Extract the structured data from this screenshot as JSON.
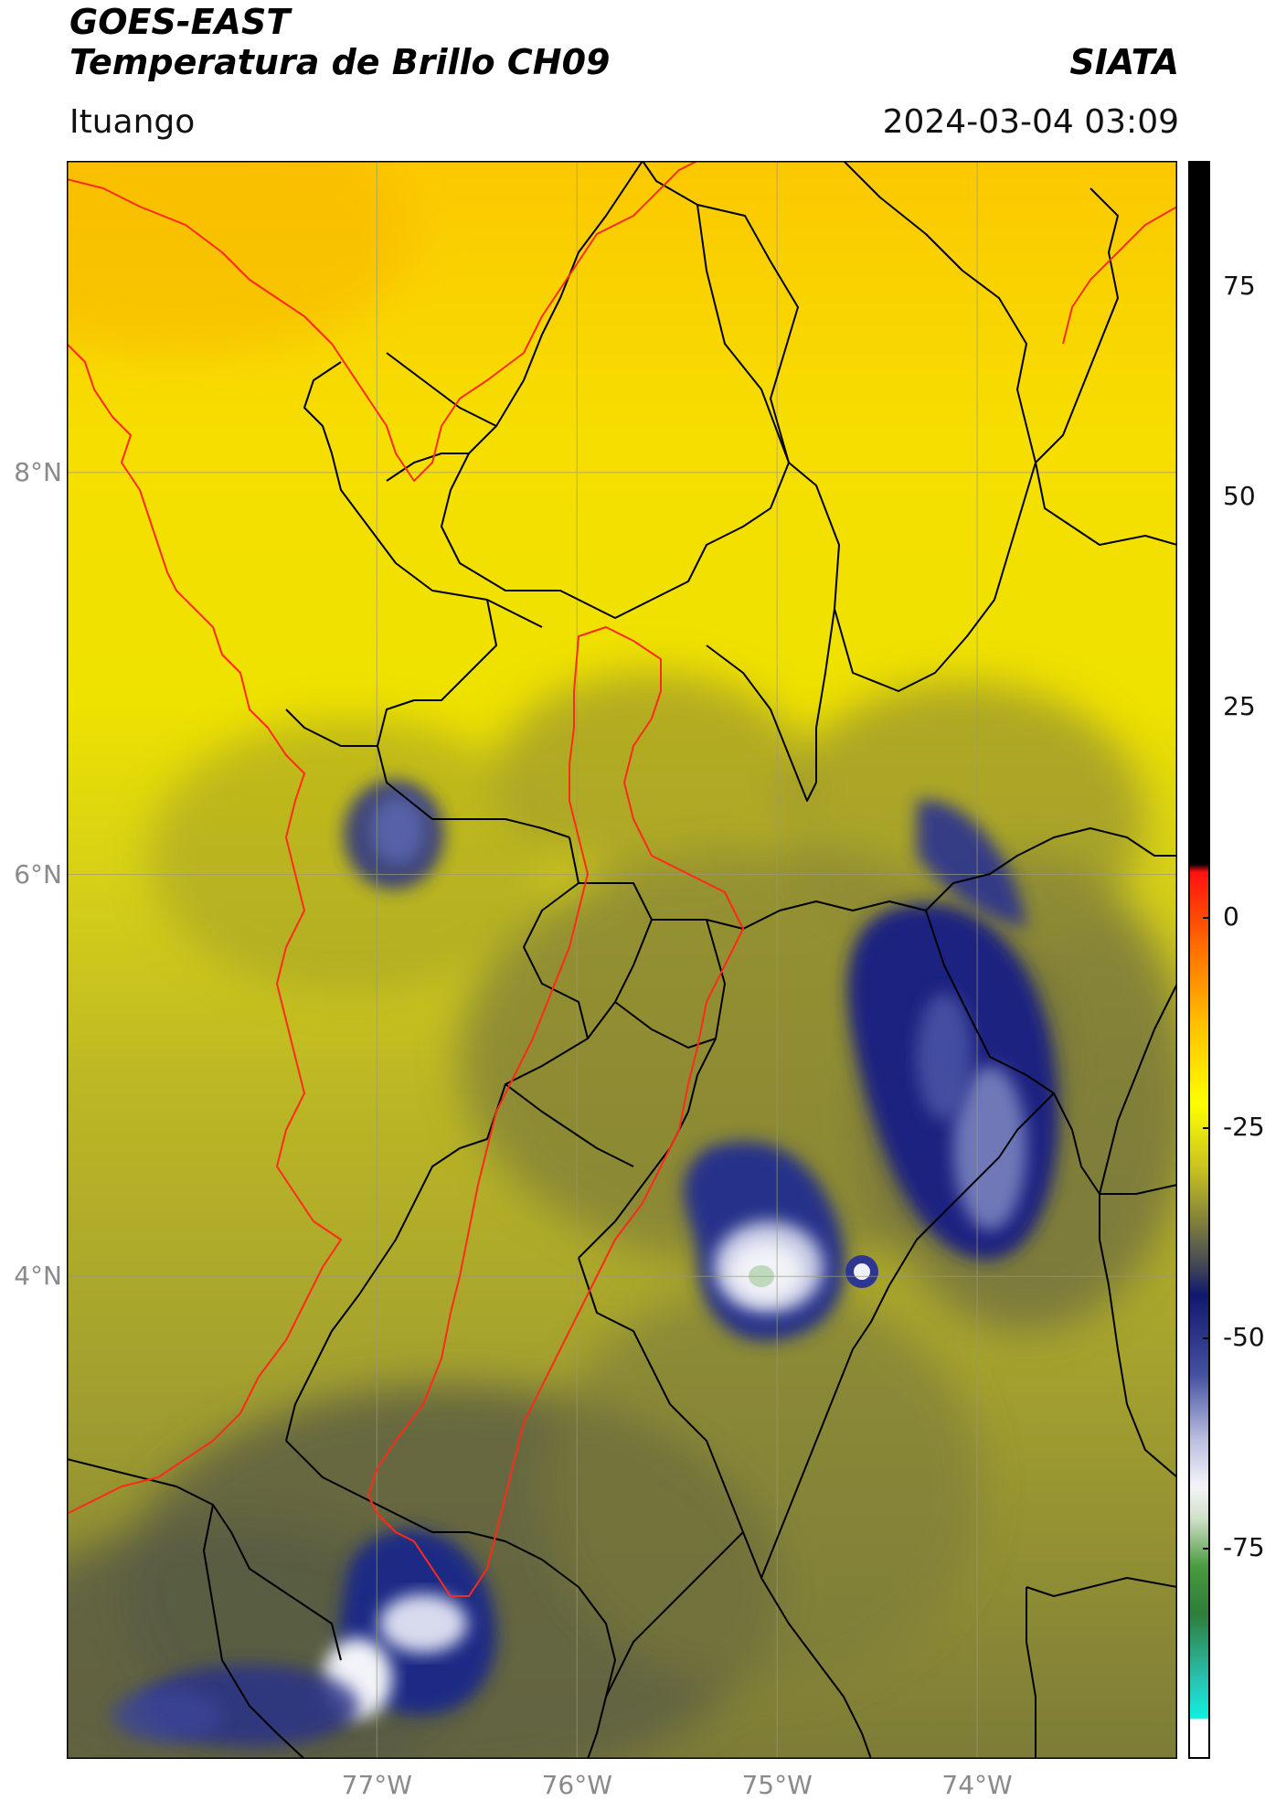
{
  "header": {
    "title_line1": "GOES-EAST",
    "title_line2": "Temperatura de Brillo CH09",
    "organization": "SIATA",
    "location": "Ituango",
    "timestamp": "2024-03-04 03:09"
  },
  "map": {
    "lat_range": [
      1.6,
      9.55
    ],
    "lon_range": [
      -78.55,
      -73.0
    ],
    "lat_labels": [
      {
        "value": 8,
        "label": "8°N"
      },
      {
        "value": 6,
        "label": "6°N"
      },
      {
        "value": 4,
        "label": "4°N"
      }
    ],
    "lon_labels": [
      {
        "value": -77,
        "label": "77°W"
      },
      {
        "value": -76,
        "label": "76°W"
      },
      {
        "value": -75,
        "label": "75°W"
      },
      {
        "value": -74,
        "label": "74°W"
      }
    ],
    "colors": {
      "background_yellow": "#f4ea00",
      "olive": "#a8a327",
      "dark_grey": "#5c5e3e",
      "cloud_navy": "#1a2380",
      "cloud_white": "#eef0f6",
      "coast_line": "#ff2a1a",
      "border_line": "#000000",
      "grid_line": "#9a9a7a"
    },
    "cold_cloud_cells": [
      {
        "name": "cell-north-choco",
        "lon": -76.92,
        "lat": 6.1,
        "intensity": "navy"
      },
      {
        "name": "cell-tolima",
        "lon": -74.98,
        "lat": 4.05,
        "intensity": "white"
      },
      {
        "name": "cell-boyaca",
        "lon": -74.1,
        "lat": 4.9,
        "intensity": "navy-white"
      },
      {
        "name": "cell-cauca",
        "lon": -76.95,
        "lat": 2.2,
        "intensity": "white"
      },
      {
        "name": "cell-narino",
        "lon": -77.75,
        "lat": 1.95,
        "intensity": "navy"
      }
    ]
  },
  "colorbar": {
    "range": [
      -100,
      90
    ],
    "ticks": [
      {
        "value": 75,
        "label": "75"
      },
      {
        "value": 50,
        "label": "50"
      },
      {
        "value": 25,
        "label": "25"
      },
      {
        "value": 0,
        "label": "0"
      },
      {
        "value": -25,
        "label": "-25"
      },
      {
        "value": -50,
        "label": "-50"
      },
      {
        "value": -75,
        "label": "-75"
      }
    ]
  }
}
